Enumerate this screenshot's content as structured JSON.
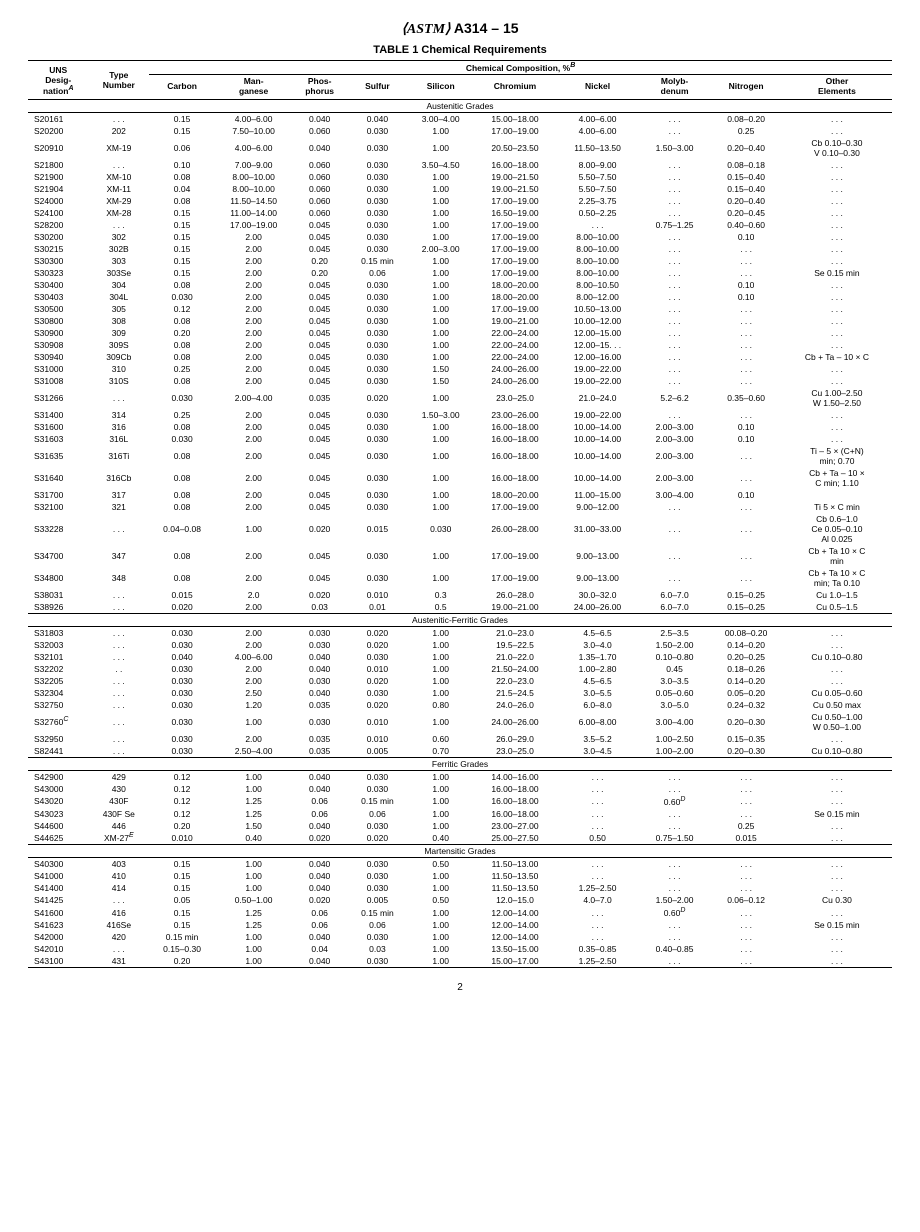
{
  "header": {
    "std": "A314 – 15"
  },
  "table_title": "TABLE 1 Chemical Requirements",
  "columns": {
    "uns1": "UNS",
    "uns2": "Desig-",
    "uns3": "nation",
    "type1": "Type",
    "type2": "Number",
    "comp_header": "Chemical Composition, %",
    "carbon": "Carbon",
    "mn1": "Man-",
    "mn2": "ganese",
    "p1": "Phos-",
    "p2": "phorus",
    "sulfur": "Sulfur",
    "silicon": "Silicon",
    "cr": "Chromium",
    "ni": "Nickel",
    "mo1": "Molyb-",
    "mo2": "denum",
    "n": "Nitrogen",
    "other1": "Other",
    "other2": "Elements"
  },
  "sections": [
    {
      "name": "Austenitic Grades",
      "rows": [
        [
          "S20161",
          ". . .",
          "0.15",
          "4.00–6.00",
          "0.040",
          "0.040",
          "3.00–4.00",
          "15.00–18.00",
          "4.00–6.00",
          ". . .",
          "0.08–0.20",
          ". . ."
        ],
        [
          "S20200",
          "202",
          "0.15",
          "7.50–10.00",
          "0.060",
          "0.030",
          "1.00",
          "17.00–19.00",
          "4.00–6.00",
          ". . .",
          "0.25",
          ". . ."
        ],
        [
          "S20910",
          "XM-19",
          "0.06",
          "4.00–6.00",
          "0.040",
          "0.030",
          "1.00",
          "20.50–23.50",
          "11.50–13.50",
          "1.50–3.00",
          "0.20–0.40",
          "Cb 0.10–0.30\nV 0.10–0.30"
        ],
        [
          "S21800",
          ". . .",
          "0.10",
          "7.00–9.00",
          "0.060",
          "0.030",
          "3.50–4.50",
          "16.00–18.00",
          "8.00–9.00",
          ". . .",
          "0.08–0.18",
          ". . ."
        ],
        [
          "S21900",
          "XM-10",
          "0.08",
          "8.00–10.00",
          "0.060",
          "0.030",
          "1.00",
          "19.00–21.50",
          "5.50–7.50",
          ". . .",
          "0.15–0.40",
          ". . ."
        ],
        [
          "S21904",
          "XM-11",
          "0.04",
          "8.00–10.00",
          "0.060",
          "0.030",
          "1.00",
          "19.00–21.50",
          "5.50–7.50",
          ". . .",
          "0.15–0.40",
          ". . ."
        ],
        [
          "S24000",
          "XM-29",
          "0.08",
          "11.50–14.50",
          "0.060",
          "0.030",
          "1.00",
          "17.00–19.00",
          "2.25–3.75",
          ". . .",
          "0.20–0.40",
          ". . ."
        ],
        [
          "S24100",
          "XM-28",
          "0.15",
          "11.00–14.00",
          "0.060",
          "0.030",
          "1.00",
          "16.50–19.00",
          "0.50–2.25",
          ". . .",
          "0.20–0.45",
          ". . ."
        ],
        [
          "S28200",
          ". . .",
          "0.15",
          "17.00–19.00",
          "0.045",
          "0.030",
          "1.00",
          "17.00–19.00",
          ". . .",
          "0.75–1.25",
          "0.40–0.60",
          ". . ."
        ],
        [
          "S30200",
          "302",
          "0.15",
          "2.00",
          "0.045",
          "0.030",
          "1.00",
          "17.00–19.00",
          "8.00–10.00",
          ". . .",
          "0.10",
          ". . ."
        ],
        [
          "S30215",
          "302B",
          "0.15",
          "2.00",
          "0.045",
          "0.030",
          "2.00–3.00",
          "17.00–19.00",
          "8.00–10.00",
          ". . .",
          ". . .",
          ". . ."
        ],
        [
          "S30300",
          "303",
          "0.15",
          "2.00",
          "0.20",
          "0.15 min",
          "1.00",
          "17.00–19.00",
          "8.00–10.00",
          ". . .",
          ". . .",
          ". . ."
        ],
        [
          "S30323",
          "303Se",
          "0.15",
          "2.00",
          "0.20",
          "0.06",
          "1.00",
          "17.00–19.00",
          "8.00–10.00",
          ". . .",
          ". . .",
          "Se 0.15 min"
        ],
        [
          "S30400",
          "304",
          "0.08",
          "2.00",
          "0.045",
          "0.030",
          "1.00",
          "18.00–20.00",
          "8.00–10.50",
          ". . .",
          "0.10",
          ". . ."
        ],
        [
          "S30403",
          "304L",
          "0.030",
          "2.00",
          "0.045",
          "0.030",
          "1.00",
          "18.00–20.00",
          "8.00–12.00",
          ". . .",
          "0.10",
          ". . ."
        ],
        [
          "S30500",
          "305",
          "0.12",
          "2.00",
          "0.045",
          "0.030",
          "1.00",
          "17.00–19.00",
          "10.50–13.00",
          ". . .",
          ". . .",
          ". . ."
        ],
        [
          "S30800",
          "308",
          "0.08",
          "2.00",
          "0.045",
          "0.030",
          "1.00",
          "19.00–21.00",
          "10.00–12.00",
          ". . .",
          ". . .",
          ". . ."
        ],
        [
          "S30900",
          "309",
          "0.20",
          "2.00",
          "0.045",
          "0.030",
          "1.00",
          "22.00–24.00",
          "12.00–15.00",
          ". . .",
          ". . .",
          ". . ."
        ],
        [
          "S30908",
          "309S",
          "0.08",
          "2.00",
          "0.045",
          "0.030",
          "1.00",
          "22.00–24.00",
          "12.00–15. . .",
          ". . .",
          ". . .",
          ". . ."
        ],
        [
          "S30940",
          "309Cb",
          "0.08",
          "2.00",
          "0.045",
          "0.030",
          "1.00",
          "22.00–24.00",
          "12.00–16.00",
          ". . .",
          ". . .",
          "Cb + Ta – 10 ×  C"
        ],
        [
          "S31000",
          "310",
          "0.25",
          "2.00",
          "0.045",
          "0.030",
          "1.50",
          "24.00–26.00",
          "19.00–22.00",
          ". . .",
          ". . .",
          ". . ."
        ],
        [
          "S31008",
          "310S",
          "0.08",
          "2.00",
          "0.045",
          "0.030",
          "1.50",
          "24.00–26.00",
          "19.00–22.00",
          ". . .",
          ". . .",
          ". . ."
        ],
        [
          "S31266",
          ". . .",
          "0.030",
          "2.00–4.00",
          "0.035",
          "0.020",
          "1.00",
          "23.0–25.0",
          "21.0–24.0",
          "5.2–6.2",
          "0.35–0.60",
          "Cu 1.00–2.50\nW 1.50–2.50"
        ],
        [
          "S31400",
          "314",
          "0.25",
          "2.00",
          "0.045",
          "0.030",
          "1.50–3.00",
          "23.00–26.00",
          "19.00–22.00",
          ". . .",
          ". . .",
          ". . ."
        ],
        [
          "S31600",
          "316",
          "0.08",
          "2.00",
          "0.045",
          "0.030",
          "1.00",
          "16.00–18.00",
          "10.00–14.00",
          "2.00–3.00",
          "0.10",
          ". . ."
        ],
        [
          "S31603",
          "316L",
          "0.030",
          "2.00",
          "0.045",
          "0.030",
          "1.00",
          "16.00–18.00",
          "10.00–14.00",
          "2.00–3.00",
          "0.10",
          ". . ."
        ],
        [
          "S31635",
          "316Ti",
          "0.08",
          "2.00",
          "0.045",
          "0.030",
          "1.00",
          "16.00–18.00",
          "10.00–14.00",
          "2.00–3.00",
          ". . .",
          "Ti – 5 × (C+N)\nmin; 0.70"
        ],
        [
          "S31640",
          "316Cb",
          "0.08",
          "2.00",
          "0.045",
          "0.030",
          "1.00",
          "16.00–18.00",
          "10.00–14.00",
          "2.00–3.00",
          ". . .",
          "Cb + Ta – 10 ×\nC min; 1.10"
        ],
        [
          "S31700",
          "317",
          "0.08",
          "2.00",
          "0.045",
          "0.030",
          "1.00",
          "18.00–20.00",
          "11.00–15.00",
          "3.00–4.00",
          "0.10",
          ""
        ],
        [
          "S32100",
          "321",
          "0.08",
          "2.00",
          "0.045",
          "0.030",
          "1.00",
          "17.00–19.00",
          "9.00–12.00",
          ". . .",
          ". . .",
          "Ti 5 × C min"
        ],
        [
          "S33228",
          ". . .",
          "0.04–0.08",
          "1.00",
          "0.020",
          "0.015",
          "0.030",
          "26.00–28.00",
          "31.00–33.00",
          ". . .",
          ". . .",
          "Cb 0.6–1.0\nCe 0.05–0.10\nAl 0.025"
        ],
        [
          "S34700",
          "347",
          "0.08",
          "2.00",
          "0.045",
          "0.030",
          "1.00",
          "17.00–19.00",
          "9.00–13.00",
          ". . .",
          ". . .",
          "Cb + Ta 10 × C\nmin"
        ],
        [
          "S34800",
          "348",
          "0.08",
          "2.00",
          "0.045",
          "0.030",
          "1.00",
          "17.00–19.00",
          "9.00–13.00",
          ". . .",
          ". . .",
          "Cb + Ta 10 × C\nmin; Ta 0.10"
        ],
        [
          "S38031",
          ". . .",
          "0.015",
          "2.0",
          "0.020",
          "0.010",
          "0.3",
          "26.0–28.0",
          "30.0–32.0",
          "6.0–7.0",
          "0.15–0.25",
          "Cu 1.0–1.5"
        ],
        [
          "S38926",
          ". . .",
          "0.020",
          "2.00",
          "0.03",
          "0.01",
          "0.5",
          "19.00–21.00",
          "24.00–26.00",
          "6.0–7.0",
          "0.15–0.25",
          "Cu 0.5–1.5"
        ]
      ]
    },
    {
      "name": "Austenitic-Ferritic Grades",
      "rows": [
        [
          "S31803",
          ". . .",
          "0.030",
          "2.00",
          "0.030",
          "0.020",
          "1.00",
          "21.0–23.0",
          "4.5–6.5",
          "2.5–3.5",
          "00.08–0.20",
          ". . ."
        ],
        [
          "S32003",
          ". . .",
          "0.030",
          "2.00",
          "0.030",
          "0.020",
          "1.00",
          "19.5–22.5",
          "3.0–4.0",
          "1.50–2.00",
          "0.14–0.20",
          ". . ."
        ],
        [
          "S32101",
          ". . .",
          "0.040",
          "4.00–6.00",
          "0.040",
          "0.030",
          "1.00",
          "21.0–22.0",
          "1.35–1.70",
          "0.10–0.80",
          "0.20–0.25",
          "Cu 0.10–0.80"
        ],
        [
          "S32202",
          ". .",
          "0.030",
          "2.00",
          "0.040",
          "0.010",
          "1.00",
          "21.50–24.00",
          "1.00–2.80",
          "0.45",
          "0.18–0.26",
          ". . ."
        ],
        [
          "S32205",
          ". . .",
          "0.030",
          "2.00",
          "0.030",
          "0.020",
          "1.00",
          "22.0–23.0",
          "4.5–6.5",
          "3.0–3.5",
          "0.14–0.20",
          ". . ."
        ],
        [
          "S32304",
          ". . .",
          "0.030",
          "2.50",
          "0.040",
          "0.030",
          "1.00",
          "21.5–24.5",
          "3.0–5.5",
          "0.05–0.60",
          "0.05–0.20",
          "Cu 0.05–0.60"
        ],
        [
          "S32750",
          ". . .",
          "0.030",
          "1.20",
          "0.035",
          "0.020",
          "0.80",
          "24.0–26.0",
          "6.0–8.0",
          "3.0–5.0",
          "0.24–0.32",
          "Cu 0.50 max"
        ],
        [
          "S32760<span class=\"sup\">C</span>",
          ". . .",
          "0.030",
          "1.00",
          "0.030",
          "0.010",
          "1.00",
          "24.00–26.00",
          "6.00–8.00",
          "3.00–4.00",
          "0.20–0.30",
          "Cu 0.50–1.00\nW 0.50–1.00"
        ],
        [
          "S32950",
          ". . .",
          "0.030",
          "2.00",
          "0.035",
          "0.010",
          "0.60",
          "26.0–29.0",
          "3.5–5.2",
          "1.00–2.50",
          "0.15–0.35",
          ". . ."
        ],
        [
          "S82441",
          ". . .",
          "0.030",
          "2.50–4.00",
          "0.035",
          "0.005",
          "0.70",
          "23.0–25.0",
          "3.0–4.5",
          "1.00–2.00",
          "0.20–0.30",
          "Cu 0.10–0.80"
        ]
      ]
    },
    {
      "name": "Ferritic Grades",
      "rows": [
        [
          "S42900",
          "429",
          "0.12",
          "1.00",
          "0.040",
          "0.030",
          "1.00",
          "14.00–16.00",
          ". . .",
          ". . .",
          ". . .",
          ". . ."
        ],
        [
          "S43000",
          "430",
          "0.12",
          "1.00",
          "0.040",
          "0.030",
          "1.00",
          "16.00–18.00",
          ". . .",
          ". . .",
          ". . .",
          ". . ."
        ],
        [
          "S43020",
          "430F",
          "0.12",
          "1.25",
          "0.06",
          "0.15 min",
          "1.00",
          "16.00–18.00",
          ". . .",
          "0.60<span class=\"sup\">D</span>",
          ". . .",
          ". . ."
        ],
        [
          "S43023",
          "430F Se",
          "0.12",
          "1.25",
          "0.06",
          "0.06",
          "1.00",
          "16.00–18.00",
          ". . .",
          ". . .",
          ". . .",
          "Se 0.15 min"
        ],
        [
          "S44600",
          "446",
          "0.20",
          "1.50",
          "0.040",
          "0.030",
          "1.00",
          "23.00–27.00",
          ". . .",
          ". . .",
          "0.25",
          ". . ."
        ],
        [
          "S44625",
          "XM-27<span class=\"sup\">E</span>",
          "0.010",
          "0.40",
          "0.020",
          "0.020",
          "0.40",
          "25.00–27.50",
          "0.50",
          "0.75–1.50",
          "0.015",
          ". . ."
        ]
      ]
    },
    {
      "name": "Martensitic Grades",
      "rows": [
        [
          "S40300",
          "403",
          "0.15",
          "1.00",
          "0.040",
          "0.030",
          "0.50",
          "11.50–13.00",
          ". . .",
          ". . .",
          ". . .",
          ". . ."
        ],
        [
          "S41000",
          "410",
          "0.15",
          "1.00",
          "0.040",
          "0.030",
          "1.00",
          "11.50–13.50",
          ". . .",
          ". . .",
          ". . .",
          ". . ."
        ],
        [
          "S41400",
          "414",
          "0.15",
          "1.00",
          "0.040",
          "0.030",
          "1.00",
          "11.50–13.50",
          "1.25–2.50",
          ". . .",
          ". . .",
          ". . ."
        ],
        [
          "S41425",
          ". . .",
          "0.05",
          "0.50–1.00",
          "0.020",
          "0.005",
          "0.50",
          "12.0–15.0",
          "4.0–7.0",
          "1.50–2.00",
          "0.06–0.12",
          "Cu 0.30"
        ],
        [
          "S41600",
          "416",
          "0.15",
          "1.25",
          "0.06",
          "0.15 min",
          "1.00",
          "12.00–14.00",
          ". . .",
          "0.60<span class=\"sup\">D</span>",
          ". . .",
          ". . ."
        ],
        [
          "S41623",
          "416Se",
          "0.15",
          "1.25",
          "0.06",
          "0.06",
          "1.00",
          "12.00–14.00",
          ". . .",
          ". . .",
          ". . .",
          "Se 0.15 min"
        ],
        [
          "S42000",
          "420",
          "0.15 min",
          "1.00",
          "0.040",
          "0.030",
          "1.00",
          "12.00–14.00",
          ". . .",
          ". . .",
          ". . .",
          ". . ."
        ],
        [
          "S42010",
          ". . .",
          "0.15–0.30",
          "1.00",
          "0.04",
          "0.03",
          "1.00",
          "13.50–15.00",
          "0.35–0.85",
          "0.40–0.85",
          ". . .",
          ". . ."
        ],
        [
          "S43100",
          "431",
          "0.20",
          "1.00",
          "0.040",
          "0.030",
          "1.00",
          "15.00–17.00",
          "1.25–2.50",
          ". . .",
          ". . .",
          ". . ."
        ]
      ]
    }
  ],
  "page": "2"
}
